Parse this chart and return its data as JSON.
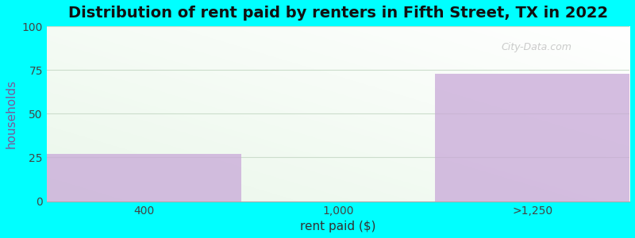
{
  "categories": [
    "400",
    "1,000",
    ">1,250"
  ],
  "values": [
    27,
    0,
    73
  ],
  "bar_color": "#c8a8d8",
  "title": "Distribution of rent paid by renters in Fifth Street, TX in 2022",
  "xlabel": "rent paid ($)",
  "ylabel": "households",
  "ylim": [
    0,
    100
  ],
  "yticks": [
    0,
    25,
    50,
    75,
    100
  ],
  "background_color": "#00ffff",
  "title_fontsize": 14,
  "label_fontsize": 11,
  "tick_fontsize": 10,
  "watermark": "City-Data.com",
  "grid_color": "#ccddcc",
  "bar_alpha": 0.75
}
